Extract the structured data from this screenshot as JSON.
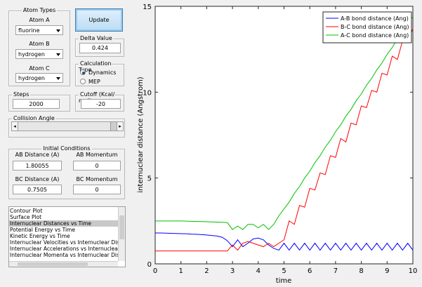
{
  "panel": {
    "atom_types": {
      "title": "Atom Types",
      "atoms": [
        {
          "label": "Atom A",
          "value": "fluorine"
        },
        {
          "label": "Atom B",
          "value": "hydrogen"
        },
        {
          "label": "Atom C",
          "value": "hydrogen"
        }
      ]
    },
    "update_button": "Update",
    "delta_value": {
      "title": "Delta Value",
      "value": "0.424"
    },
    "calculation_type": {
      "title": "Calculation Type",
      "options": [
        "Dynamics",
        "MEP"
      ],
      "selected": 0
    },
    "steps": {
      "title": "Steps",
      "value": "2000"
    },
    "cutoff": {
      "title": "Cutoff (Kcal/ mol)",
      "value": "-20"
    },
    "collision_angle": {
      "title": "Collision Angle"
    },
    "initial_conditions": {
      "title": "Initial Conditions",
      "fields": [
        {
          "label": "AB Distance (A)",
          "value": "1.80055"
        },
        {
          "label": "AB Momentum",
          "value": "0"
        },
        {
          "label": "BC Distance (A)",
          "value": "0.7505"
        },
        {
          "label": "BC Momentum",
          "value": "0"
        }
      ]
    },
    "plot_list": {
      "items": [
        "Contour Plot",
        "Surface Plot",
        "Internuclear Distances vs Time",
        "Potential Energy vs Time",
        "Kinetic Energy vs Time",
        "Internuclear Velocities vs Internuclear Distance",
        "Internuclear Accelerations vs Internuclear Distance",
        "Internuclear Momenta vs Internuclear Distance"
      ],
      "selected": 2
    }
  },
  "chart_data": {
    "type": "line",
    "x_label": "time",
    "y_label": "internuclear distance (Angstrom)",
    "x": [
      0,
      0.2,
      0.4,
      0.6,
      0.8,
      1,
      1.2,
      1.4,
      1.6,
      1.8,
      2,
      2.2,
      2.4,
      2.6,
      2.8,
      3,
      3.2,
      3.4,
      3.6,
      3.8,
      4,
      4.2,
      4.4,
      4.6,
      4.8,
      5,
      5.2,
      5.4,
      5.6,
      5.8,
      6,
      6.2,
      6.4,
      6.6,
      6.8,
      7,
      7.2,
      7.4,
      7.6,
      7.8,
      8,
      8.2,
      8.4,
      8.6,
      8.8,
      9,
      9.2,
      9.4,
      9.6,
      9.8,
      10
    ],
    "series": [
      {
        "name": "A-B bond distance (Ang)",
        "color": "#0000ff",
        "values": [
          1.8,
          1.8,
          1.79,
          1.78,
          1.77,
          1.76,
          1.75,
          1.73,
          1.72,
          1.7,
          1.68,
          1.65,
          1.62,
          1.55,
          1.35,
          1.0,
          1.4,
          1.0,
          1.2,
          1.45,
          1.5,
          1.4,
          1.1,
          0.9,
          0.8,
          1.2,
          0.8,
          1.2,
          0.8,
          1.2,
          0.8,
          1.2,
          0.8,
          1.2,
          0.8,
          1.2,
          0.8,
          1.2,
          0.8,
          1.2,
          0.8,
          1.2,
          0.8,
          1.2,
          0.8,
          1.2,
          0.8,
          1.2,
          0.8,
          1.2,
          0.8
        ]
      },
      {
        "name": "B-C bond distance (Ang)",
        "color": "#ff0000",
        "values": [
          0.75,
          0.75,
          0.75,
          0.75,
          0.75,
          0.75,
          0.75,
          0.75,
          0.75,
          0.75,
          0.75,
          0.75,
          0.75,
          0.75,
          0.75,
          1.1,
          0.8,
          1.2,
          1.3,
          1.2,
          1.1,
          1.0,
          1.2,
          1.0,
          1.2,
          1.4,
          2.5,
          2.3,
          3.4,
          3.3,
          4.4,
          4.3,
          5.3,
          5.2,
          6.3,
          6.2,
          7.3,
          7.1,
          8.2,
          8.1,
          9.2,
          9.1,
          10.1,
          10.0,
          11.1,
          11.0,
          12.1,
          11.9,
          13.0,
          12.9,
          13.7
        ]
      },
      {
        "name": "A-C bond distance (Ang)",
        "color": "#00c000",
        "values": [
          2.5,
          2.5,
          2.5,
          2.5,
          2.5,
          2.5,
          2.49,
          2.48,
          2.47,
          2.46,
          2.45,
          2.44,
          2.43,
          2.42,
          2.4,
          2.0,
          2.2,
          2.0,
          2.3,
          2.3,
          2.1,
          2.3,
          2.0,
          2.3,
          2.8,
          3.2,
          3.6,
          4.1,
          4.5,
          5.0,
          5.4,
          5.9,
          6.3,
          6.8,
          7.2,
          7.7,
          8.1,
          8.6,
          9.0,
          9.5,
          9.9,
          10.4,
          10.8,
          11.3,
          11.7,
          12.2,
          12.6,
          13.1,
          13.5,
          14.0,
          14.4
        ]
      }
    ],
    "xlim": [
      0,
      10
    ],
    "ylim": [
      0,
      15
    ],
    "xticks": [
      0,
      1,
      2,
      3,
      4,
      5,
      6,
      7,
      8,
      9,
      10
    ],
    "yticks": [
      0,
      5,
      10,
      15
    ],
    "legend": "upper right"
  }
}
